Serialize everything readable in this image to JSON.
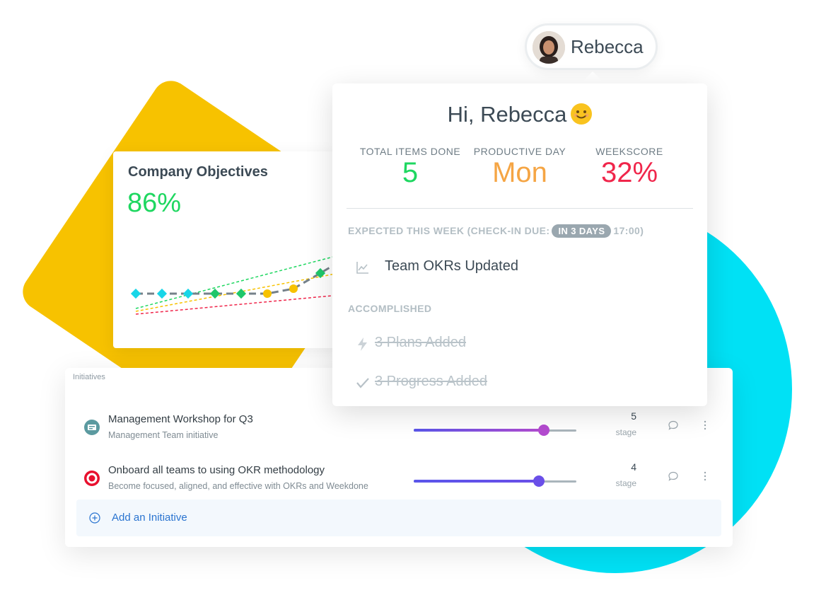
{
  "user": {
    "name": "Rebecca"
  },
  "objectives": {
    "title": "Company Objectives",
    "percent": "86%"
  },
  "popup": {
    "greeting": "Hi, Rebecca",
    "stats": [
      {
        "label": "TOTAL ITEMS DONE",
        "value": "5",
        "color": "#1ed760"
      },
      {
        "label": "PRODUCTIVE DAY",
        "value": "Mon",
        "color": "#f5a544"
      },
      {
        "label": "WEEKSCORE",
        "value": "32%",
        "color": "#f0264b"
      }
    ],
    "expected": {
      "label": "EXPECTED THIS WEEK (CHECK-IN DUE:",
      "badge": "IN 3 DAYS",
      "time": "17:00)",
      "items": [
        {
          "icon": "chart-line-icon",
          "text": "Team OKRs Updated"
        }
      ]
    },
    "accomplished": {
      "label": "ACCOMPLISHED",
      "items": [
        {
          "icon": "lightning-icon",
          "text": "3 Plans Added"
        },
        {
          "icon": "check-icon",
          "text": "3 Progress Added"
        }
      ]
    }
  },
  "initiatives": {
    "header": "Initiatives",
    "rows": [
      {
        "icon": "presentation-icon",
        "title": "Management Workshop for Q3",
        "subtitle": "Management Team initiative",
        "progress": 0.8,
        "stage_value": "5",
        "stage_label": "stage"
      },
      {
        "icon": "target-icon",
        "title": "Onboard all teams to using OKR methodology",
        "subtitle": "Become focused, aligned, and effective with OKRs and Weekdone",
        "progress": 0.77,
        "stage_value": "4",
        "stage_label": "stage"
      }
    ],
    "add_label": "Add an Initiative"
  },
  "colors": {
    "accent_blue": "#2a74d0",
    "green": "#1ed760",
    "orange": "#f5a544",
    "red": "#f0264b",
    "yellow_bg": "#f7c200",
    "cyan_bg": "#00e1f5"
  }
}
